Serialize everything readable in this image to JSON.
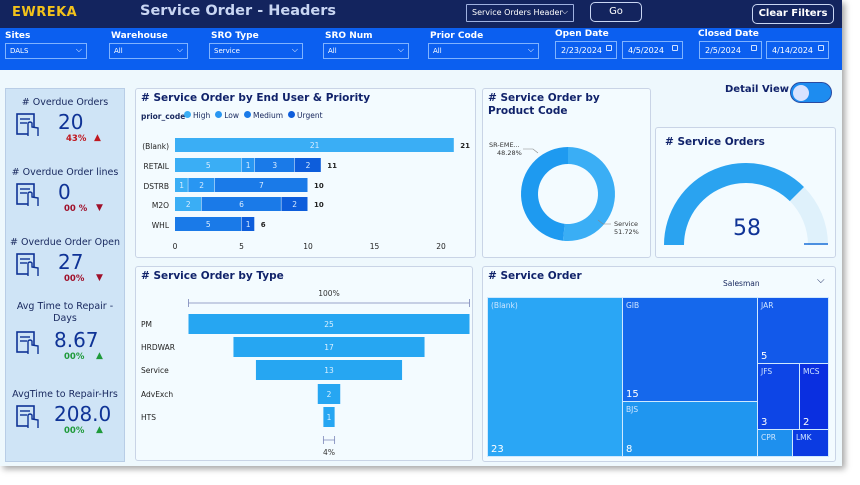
{
  "header": {
    "logo": "EWREKA",
    "title": "Service Order - Headers",
    "report_select": "Service Orders Header",
    "go_label": "Go",
    "clear_filters_label": "Clear Filters"
  },
  "filters": [
    {
      "label": "Sites",
      "value": "DALS"
    },
    {
      "label": "Warehouse",
      "value": "All"
    },
    {
      "label": "SRO Type",
      "value": "Service"
    },
    {
      "label": "SRO Num",
      "value": "All"
    },
    {
      "label": "Prior Code",
      "value": "All"
    }
  ],
  "open_date": {
    "label": "Open Date",
    "from": "2/23/2024",
    "to": "4/5/2024"
  },
  "closed_date": {
    "label": "Closed Date",
    "from": "2/5/2024",
    "to": "4/14/2024"
  },
  "kpis": [
    {
      "title": "# Overdue Orders",
      "value": "20",
      "delta": "43%",
      "direction": "up",
      "color": "#c0181f"
    },
    {
      "title": "# Overdue Order lines",
      "value": "0",
      "delta": "00 %",
      "direction": "down",
      "color": "#a0102a"
    },
    {
      "title": "# Overdue Order Open",
      "value": "27",
      "delta": "00%",
      "direction": "down",
      "color": "#a0102a"
    },
    {
      "title": "Avg Time to Repair - Days",
      "value": "8.67",
      "delta": "00%",
      "direction": "up",
      "color": "#1f9a3a"
    },
    {
      "title": "AvgTime to Repair-Hrs",
      "value": "208.0",
      "delta": "00%",
      "direction": "up",
      "color": "#1f9a3a"
    }
  ],
  "detail_view": {
    "label": "Detail View",
    "on": true
  },
  "chart_data": [
    {
      "type": "bar",
      "title": "# Service Order by End User & Priority",
      "legend_title": "prior_code",
      "categories": [
        "(Blank)",
        "RETAIL",
        "DSTRB",
        "M2O",
        "WHL"
      ],
      "series": [
        {
          "name": "High",
          "color": "#3aaef5",
          "values": [
            21,
            5,
            1,
            2,
            0
          ]
        },
        {
          "name": "Low",
          "color": "#2896f2",
          "values": [
            0,
            1,
            2,
            0,
            0
          ]
        },
        {
          "name": "Medium",
          "color": "#1a7ae8",
          "values": [
            0,
            3,
            7,
            6,
            5
          ]
        },
        {
          "name": "Urgent",
          "color": "#0d5ddb",
          "values": [
            0,
            2,
            0,
            2,
            1
          ]
        }
      ],
      "totals": [
        21,
        11,
        10,
        10,
        6
      ],
      "xticks": [
        0,
        5,
        10,
        15,
        20
      ],
      "xlim": [
        0,
        21
      ]
    },
    {
      "type": "pie",
      "title": "# Service Order by Product Code",
      "labels": [
        "SR-EME...",
        "Service"
      ],
      "values": [
        48.28,
        51.72
      ],
      "value_labels": [
        "48.28%",
        "51.72%"
      ],
      "colors": [
        "#1e9af0",
        "#3aaef5"
      ]
    },
    {
      "type": "gauge",
      "title": "# Service Orders",
      "value": 58,
      "fill_fraction": 0.75
    },
    {
      "type": "bar",
      "subtype": "funnel",
      "title": "# Service Order by Type",
      "categories": [
        "PM",
        "HRDWAR",
        "Service",
        "AdvExch",
        "HTS"
      ],
      "values": [
        25,
        17,
        13,
        2,
        1
      ],
      "top_label": "100%",
      "bottom_label": "4%"
    },
    {
      "type": "heatmap",
      "subtype": "treemap",
      "title": "# Service Order",
      "field": "Salesman",
      "labels": [
        "(Blank)",
        "GIB",
        "BJS",
        "JAR",
        "JFS",
        "MCS",
        "CPR",
        "LMK"
      ],
      "values": [
        23,
        15,
        8,
        5,
        3,
        2,
        1,
        1
      ],
      "colors": [
        "#2aa6f5",
        "#1568ec",
        "#1f96f0",
        "#1259ea",
        "#0d45e6",
        "#0a2fe0",
        "#1e90ee",
        "#0b3be2"
      ]
    }
  ]
}
